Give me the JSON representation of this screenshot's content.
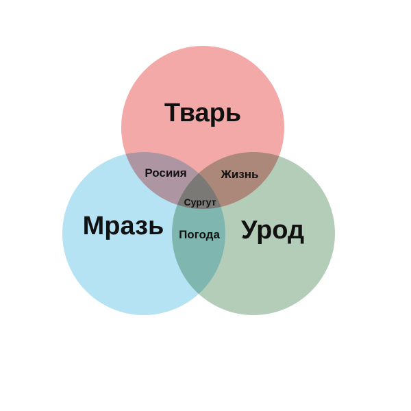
{
  "sets": {
    "top": {
      "label": "Тварь",
      "color": "#f4a9a9"
    },
    "left": {
      "label": "Мразь",
      "color": "#b5e3f4"
    },
    "right": {
      "label": "Урод",
      "color": "#b4cdb8"
    }
  },
  "intersections": {
    "top_left": "Росиия",
    "top_right": "Жизнь",
    "left_right": "Погода",
    "all_three": "Сургут"
  }
}
